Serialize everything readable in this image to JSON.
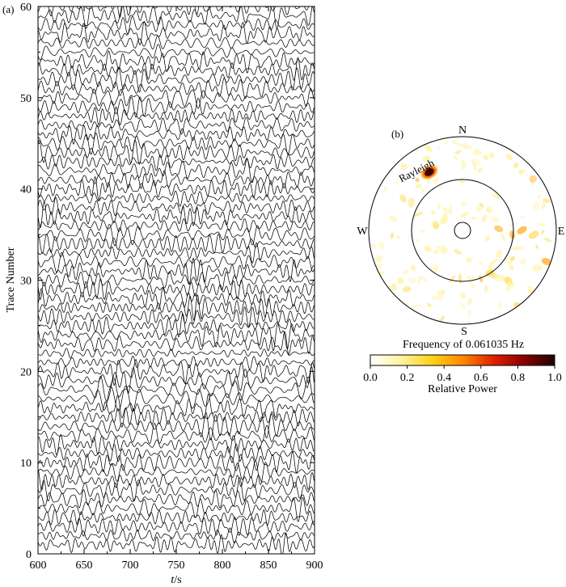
{
  "panel_a": {
    "label": "(a)",
    "xlabel_italic": "t",
    "xlabel_unit": "/s",
    "ylabel": "Trace Number",
    "x_ticks": [
      "600",
      "650",
      "700",
      "750",
      "800",
      "850",
      "900"
    ],
    "y_ticks": [
      "0",
      "10",
      "20",
      "30",
      "40",
      "50",
      "60"
    ]
  },
  "panel_b": {
    "label": "(b)",
    "directions": {
      "north": "N",
      "east": "E",
      "south": "S",
      "west": "W"
    },
    "peak_label": "Rayleigh",
    "caption": "Frequency of 0.061035 Hz",
    "colorbar_label": "Relative Power",
    "colorbar_ticks": [
      "0.0",
      "0.2",
      "0.4",
      "0.6",
      "0.8",
      "1.0"
    ],
    "colormap": [
      "#ffffff",
      "#fff3a0",
      "#ffd21a",
      "#ff8a00",
      "#e02000",
      "#8a0000",
      "#200000"
    ]
  },
  "chart_data": [
    {
      "type": "line",
      "title": "",
      "xlabel": "t/s",
      "ylabel": "Trace Number",
      "xlim": [
        600,
        900
      ],
      "ylim": [
        0,
        60
      ],
      "trace_count": 60,
      "description_of_series": "60 seismic waveform traces plotted at offsets 1..60"
    },
    {
      "type": "heatmap",
      "title": "Frequency of 0.061035 Hz",
      "projection": "polar",
      "colorbar": {
        "label": "Relative Power",
        "range": [
          0.0,
          1.0
        ]
      },
      "peak": {
        "label": "Rayleigh",
        "direction": "NW",
        "relative_power": 1.0
      }
    }
  ]
}
